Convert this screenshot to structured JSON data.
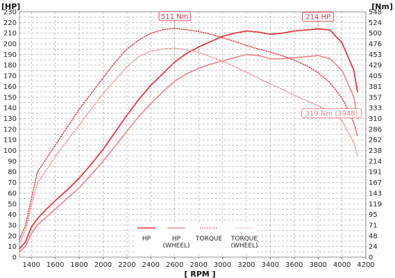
{
  "chart_data": {
    "type": "line",
    "xlabel": "[ RPM ]",
    "ylabel_left": "[HP]",
    "ylabel_right": "[Nm]",
    "xlim": [
      1300,
      4200
    ],
    "x_ticks": [
      1400,
      1600,
      1800,
      2000,
      2200,
      2400,
      2600,
      2800,
      3000,
      3200,
      3400,
      3600,
      3800,
      4000,
      4200
    ],
    "ylim_left": [
      0,
      230
    ],
    "y_ticks_left": [
      0,
      5,
      10,
      15,
      20,
      25,
      30,
      35,
      40,
      45,
      50,
      55,
      60,
      65,
      70,
      75,
      80,
      85,
      90,
      95,
      100,
      105,
      110,
      115,
      120,
      125,
      130,
      135,
      140,
      145,
      150,
      155,
      160,
      165,
      170,
      175,
      180,
      185,
      190,
      195,
      200,
      205,
      210,
      215,
      220,
      225,
      230
    ],
    "y_tick_labels_left": [
      "0",
      "",
      "10",
      "",
      "20",
      "",
      "30",
      "",
      "40",
      "",
      "50",
      "",
      "60",
      "",
      "70",
      "",
      "80",
      "",
      "90",
      "",
      "100",
      "",
      "110",
      "",
      "120",
      "",
      "130",
      "",
      "140",
      "",
      "150",
      "",
      "160",
      "",
      "170",
      "",
      "180",
      "",
      "190",
      "",
      "200",
      "",
      "210",
      "",
      "220",
      "",
      "230"
    ],
    "ylim_right": [
      0,
      548
    ],
    "y_tick_labels_right": [
      "0",
      "",
      "24",
      "",
      "48",
      "",
      "71",
      "",
      "95",
      "",
      "119",
      "",
      "143",
      "",
      "167",
      "",
      "191",
      "",
      "214",
      "",
      "238",
      "",
      "262",
      "",
      "286",
      "",
      "310",
      "",
      "333",
      "",
      "357",
      "",
      "381",
      "",
      "405",
      "",
      "429",
      "",
      "453",
      "",
      "476",
      "",
      "500",
      "",
      "524",
      "",
      "548"
    ],
    "grid": true,
    "series": [
      {
        "name": "HP",
        "axis": "left",
        "color": "#e03a3e",
        "style": "solid",
        "x": [
          1300,
          1350,
          1400,
          1450,
          1500,
          1600,
          1700,
          1800,
          1900,
          2000,
          2100,
          2200,
          2300,
          2400,
          2500,
          2600,
          2700,
          2800,
          2900,
          3000,
          3100,
          3200,
          3300,
          3400,
          3500,
          3600,
          3700,
          3800,
          3900,
          4000,
          4050,
          4100,
          4130
        ],
        "y": [
          8,
          14,
          28,
          36,
          42,
          53,
          63,
          74,
          87,
          101,
          117,
          133,
          148,
          161,
          172,
          183,
          191,
          197,
          202,
          207,
          210,
          212,
          211,
          209,
          210,
          212,
          213,
          214,
          213,
          201,
          188,
          175,
          155
        ]
      },
      {
        "name": "HP (WHEEL)",
        "axis": "left",
        "color": "#ef8d8f",
        "style": "solid",
        "x": [
          1300,
          1350,
          1400,
          1450,
          1500,
          1600,
          1700,
          1800,
          1900,
          2000,
          2100,
          2200,
          2300,
          2400,
          2500,
          2600,
          2700,
          2800,
          2900,
          3000,
          3100,
          3200,
          3300,
          3400,
          3500,
          3600,
          3700,
          3800,
          3900,
          4000,
          4050,
          4100,
          4130
        ],
        "y": [
          5,
          10,
          22,
          30,
          35,
          45,
          55,
          65,
          77,
          90,
          104,
          118,
          132,
          144,
          155,
          165,
          172,
          177,
          181,
          184,
          187,
          190,
          189,
          186,
          186,
          187,
          188,
          189,
          186,
          175,
          163,
          150,
          130
        ]
      },
      {
        "name": "TORQUE",
        "axis": "right",
        "color": "#e03a3e",
        "style": "dotted",
        "callout": "511 Nm",
        "callout_x": 2600,
        "x": [
          1300,
          1350,
          1400,
          1450,
          1500,
          1600,
          1700,
          1800,
          1900,
          2000,
          2100,
          2200,
          2300,
          2400,
          2500,
          2600,
          2700,
          2800,
          2900,
          3000,
          3100,
          3200,
          3300,
          3400,
          3500,
          3600,
          3700,
          3800,
          3900,
          4000,
          4050,
          4100,
          4130
        ],
        "y": [
          40,
          70,
          130,
          190,
          210,
          250,
          290,
          330,
          365,
          400,
          435,
          465,
          485,
          500,
          508,
          511,
          508,
          504,
          498,
          490,
          482,
          473,
          465,
          458,
          450,
          440,
          428,
          412,
          390,
          355,
          330,
          300,
          270
        ]
      },
      {
        "name": "TORQUE (WHEEL)",
        "axis": "right",
        "color": "#ef8d8f",
        "style": "dotted",
        "callout": "319 Nm (3948)",
        "callout_x": 3948,
        "x": [
          1300,
          1350,
          1400,
          1450,
          1500,
          1600,
          1700,
          1800,
          1900,
          2000,
          2100,
          2200,
          2300,
          2400,
          2500,
          2600,
          2700,
          2800,
          2900,
          3000,
          3100,
          3200,
          3300,
          3400,
          3500,
          3600,
          3700,
          3800,
          3900,
          4000,
          4050,
          4100,
          4130
        ],
        "y": [
          30,
          60,
          115,
          165,
          185,
          225,
          260,
          295,
          330,
          365,
          395,
          425,
          448,
          460,
          465,
          467,
          463,
          457,
          448,
          438,
          426,
          413,
          400,
          387,
          375,
          362,
          350,
          338,
          325,
          305,
          280,
          255,
          225
        ]
      }
    ],
    "hp_callout": {
      "label": "214 HP",
      "x": 3800
    }
  }
}
